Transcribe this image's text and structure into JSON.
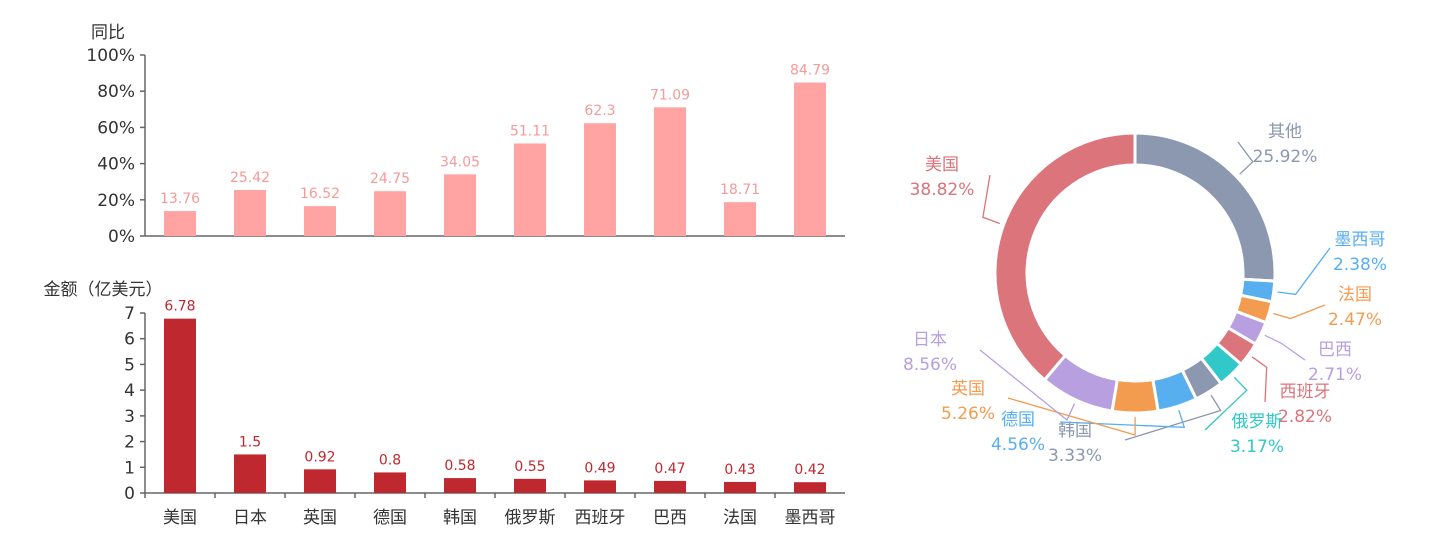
{
  "chart_data": [
    {
      "type": "bar",
      "ylabel": "同比",
      "yticks": [
        "0%",
        "20%",
        "40%",
        "60%",
        "80%",
        "100%"
      ],
      "ylim": [
        0,
        100
      ],
      "categories": [
        "美国",
        "日本",
        "英国",
        "德国",
        "韩国",
        "俄罗斯",
        "西班牙",
        "巴西",
        "法国",
        "墨西哥"
      ],
      "values": [
        13.76,
        25.42,
        16.52,
        24.75,
        34.05,
        51.11,
        62.3,
        71.09,
        18.71,
        84.79
      ],
      "labels": [
        "13.76",
        "25.42",
        "16.52",
        "24.75",
        "34.05",
        "51.11",
        "62.3",
        "71.09",
        "18.71",
        "84.79"
      ],
      "color": "#ffa3a3"
    },
    {
      "type": "bar",
      "ylabel": "金额（亿美元）",
      "yticks": [
        "0",
        "1",
        "2",
        "3",
        "4",
        "5",
        "6",
        "7"
      ],
      "ylim": [
        0,
        7
      ],
      "categories": [
        "美国",
        "日本",
        "英国",
        "德国",
        "韩国",
        "俄罗斯",
        "西班牙",
        "巴西",
        "法国",
        "墨西哥"
      ],
      "values": [
        6.78,
        1.5,
        0.92,
        0.8,
        0.58,
        0.55,
        0.49,
        0.47,
        0.43,
        0.42
      ],
      "labels": [
        "6.78",
        "1.5",
        "0.92",
        "0.8",
        "0.58",
        "0.55",
        "0.49",
        "0.47",
        "0.43",
        "0.42"
      ],
      "color": "#c0282f"
    },
    {
      "type": "pie",
      "donut": true,
      "slices": [
        {
          "name": "其他",
          "value": 25.92,
          "label": "25.92%",
          "color": "#8c97b0"
        },
        {
          "name": "墨西哥",
          "value": 2.38,
          "label": "2.38%",
          "color": "#58aff0"
        },
        {
          "name": "法国",
          "value": 2.47,
          "label": "2.47%",
          "color": "#f39c50"
        },
        {
          "name": "巴西",
          "value": 2.71,
          "label": "2.71%",
          "color": "#b79fe0"
        },
        {
          "name": "西班牙",
          "value": 2.82,
          "label": "2.82%",
          "color": "#db747b"
        },
        {
          "name": "俄罗斯",
          "value": 3.17,
          "label": "3.17%",
          "color": "#30c8c8"
        },
        {
          "name": "韩国",
          "value": 3.33,
          "label": "3.33%",
          "color": "#8c97b0"
        },
        {
          "name": "德国",
          "value": 4.56,
          "label": "4.56%",
          "color": "#58aff0"
        },
        {
          "name": "英国",
          "value": 5.26,
          "label": "5.26%",
          "color": "#f39c50"
        },
        {
          "name": "日本",
          "value": 8.56,
          "label": "8.56%",
          "color": "#b79fe0"
        },
        {
          "name": "美国",
          "value": 38.82,
          "label": "38.82%",
          "color": "#db747b"
        }
      ]
    }
  ]
}
